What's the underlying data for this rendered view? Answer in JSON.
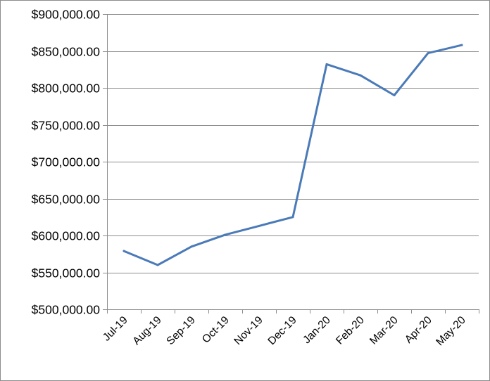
{
  "chart_data": {
    "type": "line",
    "title": "",
    "xlabel": "",
    "ylabel": "",
    "categories": [
      "Jul-19",
      "Aug-19",
      "Sep-19",
      "Oct-19",
      "Nov-19",
      "Dec-19",
      "Jan-20",
      "Feb-20",
      "Mar-20",
      "Apr-20",
      "May-20"
    ],
    "series": [
      {
        "values": [
          579000,
          560000,
          585000,
          601000,
          613000,
          625000,
          832000,
          817000,
          790000,
          847000,
          858000
        ],
        "color": "#4a7ab8"
      }
    ],
    "ylim": [
      500000,
      900000
    ],
    "y_ticks": [
      500000,
      550000,
      600000,
      650000,
      700000,
      750000,
      800000,
      850000,
      900000
    ],
    "y_tick_labels": [
      "$500,000.00",
      "$550,000.00",
      "$600,000.00",
      "$650,000.00",
      "$700,000.00",
      "$750,000.00",
      "$800,000.00",
      "$850,000.00",
      "$900,000.00"
    ],
    "grid": true,
    "legend": "none"
  }
}
